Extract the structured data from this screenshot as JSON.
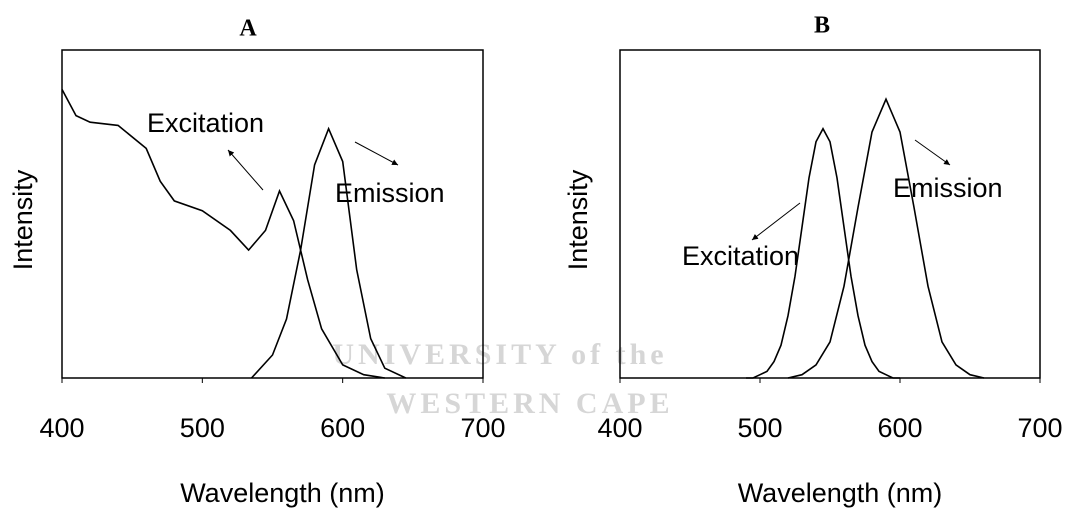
{
  "chart_data": [
    {
      "type": "line",
      "title": "A",
      "xlabel": "Wavelength (nm)",
      "ylabel": "Intensity",
      "xlim": [
        400,
        700
      ],
      "xticks": [
        400,
        500,
        600,
        700
      ],
      "ylim": [
        0,
        1
      ],
      "series": [
        {
          "name": "Excitation",
          "color": "#000000",
          "x": [
            400,
            410,
            420,
            440,
            460,
            470,
            480,
            500,
            520,
            533,
            545,
            555,
            565,
            575,
            585,
            600,
            615,
            630
          ],
          "values": [
            0.88,
            0.8,
            0.78,
            0.77,
            0.7,
            0.6,
            0.54,
            0.51,
            0.45,
            0.39,
            0.45,
            0.57,
            0.48,
            0.3,
            0.15,
            0.04,
            0.01,
            0
          ]
        },
        {
          "name": "Emission",
          "color": "#000000",
          "x": [
            535,
            550,
            560,
            570,
            580,
            590,
            600,
            610,
            620,
            630,
            645
          ],
          "values": [
            0,
            0.07,
            0.18,
            0.39,
            0.65,
            0.76,
            0.66,
            0.33,
            0.12,
            0.03,
            0
          ]
        }
      ]
    },
    {
      "type": "line",
      "title": "B",
      "xlabel": "Wavelength (nm)",
      "ylabel": "Intensity",
      "xlim": [
        400,
        700
      ],
      "xticks": [
        400,
        500,
        600,
        700
      ],
      "ylim": [
        0,
        1
      ],
      "series": [
        {
          "name": "Excitation",
          "color": "#000000",
          "x": [
            490,
            495,
            500,
            505,
            510,
            515,
            520,
            525,
            530,
            535,
            540,
            545,
            550,
            555,
            560,
            565,
            570,
            575,
            580,
            585,
            590,
            595,
            600
          ],
          "values": [
            0,
            0,
            0.01,
            0.02,
            0.05,
            0.1,
            0.19,
            0.31,
            0.46,
            0.61,
            0.72,
            0.76,
            0.72,
            0.61,
            0.46,
            0.31,
            0.19,
            0.1,
            0.05,
            0.02,
            0.01,
            0,
            0
          ]
        },
        {
          "name": "Emission",
          "color": "#000000",
          "x": [
            520,
            530,
            540,
            550,
            560,
            570,
            580,
            590,
            600,
            610,
            620,
            630,
            640,
            650,
            660
          ],
          "values": [
            0,
            0.01,
            0.04,
            0.11,
            0.28,
            0.52,
            0.75,
            0.85,
            0.75,
            0.52,
            0.28,
            0.11,
            0.04,
            0.01,
            0
          ]
        }
      ]
    }
  ],
  "watermark": [
    "UNIVERSITY of the",
    "WESTERN CAPE"
  ]
}
